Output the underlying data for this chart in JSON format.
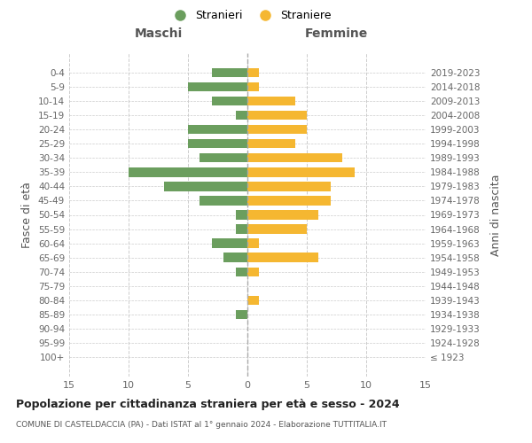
{
  "age_groups": [
    "100+",
    "95-99",
    "90-94",
    "85-89",
    "80-84",
    "75-79",
    "70-74",
    "65-69",
    "60-64",
    "55-59",
    "50-54",
    "45-49",
    "40-44",
    "35-39",
    "30-34",
    "25-29",
    "20-24",
    "15-19",
    "10-14",
    "5-9",
    "0-4"
  ],
  "birth_years": [
    "≤ 1923",
    "1924-1928",
    "1929-1933",
    "1934-1938",
    "1939-1943",
    "1944-1948",
    "1949-1953",
    "1954-1958",
    "1959-1963",
    "1964-1968",
    "1969-1973",
    "1974-1978",
    "1979-1983",
    "1984-1988",
    "1989-1993",
    "1994-1998",
    "1999-2003",
    "2004-2008",
    "2009-2013",
    "2014-2018",
    "2019-2023"
  ],
  "males": [
    0,
    0,
    0,
    1,
    0,
    0,
    1,
    2,
    3,
    1,
    1,
    4,
    7,
    10,
    4,
    5,
    5,
    1,
    3,
    5,
    3
  ],
  "females": [
    0,
    0,
    0,
    0,
    1,
    0,
    1,
    6,
    1,
    5,
    6,
    7,
    7,
    9,
    8,
    4,
    5,
    5,
    4,
    1,
    1
  ],
  "male_color": "#6b9e5e",
  "female_color": "#f5b731",
  "xlim": 15,
  "title": "Popolazione per cittadinanza straniera per età e sesso - 2024",
  "subtitle": "COMUNE DI CASTELDACCIA (PA) - Dati ISTAT al 1° gennaio 2024 - Elaborazione TUTTITALIA.IT",
  "ylabel_left": "Fasce di età",
  "ylabel_right": "Anni di nascita",
  "legend_stranieri": "Stranieri",
  "legend_straniere": "Straniere",
  "label_maschi": "Maschi",
  "label_femmine": "Femmine",
  "bg_color": "#ffffff",
  "grid_color": "#cccccc"
}
